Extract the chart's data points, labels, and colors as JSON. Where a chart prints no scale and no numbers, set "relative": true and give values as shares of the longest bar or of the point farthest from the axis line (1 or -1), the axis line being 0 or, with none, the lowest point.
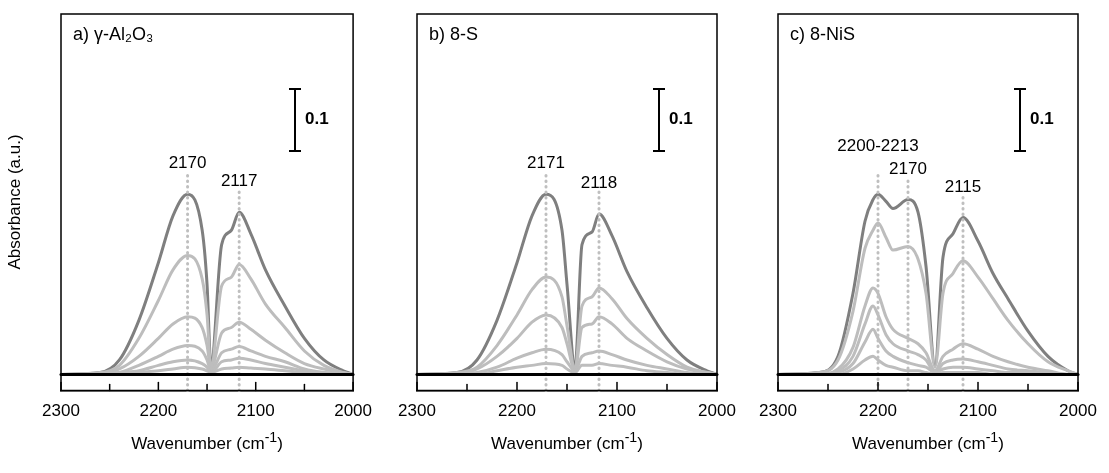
{
  "chart_data": [
    {
      "type": "line",
      "title": "a) γ-Al₂O₃",
      "xlabel": "Wavenumber (cm$^{-1}$)",
      "ylabel": "Absorbance (a.u.)",
      "relative": true,
      "annotations": [
        "0.1"
      ],
      "xlim": [
        2300,
        2000
      ],
      "xticks": [
        2300,
        {
          "value": 2250,
          "label": null
        },
        2200,
        {
          "value": 2150,
          "label": null
        },
        2100,
        {
          "value": 2050,
          "label": null
        },
        2000
      ],
      "x": [
        2300,
        2260,
        2240,
        2220,
        2200,
        2185,
        2170,
        2155,
        2150,
        2146,
        2135,
        2125,
        2117,
        2105,
        2090,
        2070,
        2050,
        2030,
        2010,
        2000
      ],
      "series": [
        {
          "color": "#7f7f7f",
          "values": [
            0,
            0.01,
            0.08,
            0.3,
            0.62,
            0.88,
            1,
            0.8,
            0.5,
            0.05,
            0.72,
            0.8,
            0.9,
            0.78,
            0.58,
            0.38,
            0.2,
            0.08,
            0.02,
            0
          ]
        },
        {
          "color": "#bdbdbd",
          "values": [
            0,
            0.01,
            0.05,
            0.2,
            0.41,
            0.58,
            0.66,
            0.53,
            0.33,
            0.04,
            0.49,
            0.54,
            0.61,
            0.53,
            0.39,
            0.26,
            0.13,
            0.05,
            0.01,
            0
          ]
        },
        {
          "color": "#bdbdbd",
          "values": [
            0,
            0,
            0.03,
            0.1,
            0.2,
            0.28,
            0.32,
            0.26,
            0.16,
            0.03,
            0.23,
            0.26,
            0.29,
            0.25,
            0.19,
            0.12,
            0.06,
            0.03,
            0.01,
            0
          ]
        },
        {
          "color": "#bdbdbd",
          "values": [
            0,
            0,
            0.01,
            0.05,
            0.1,
            0.14,
            0.16,
            0.13,
            0.08,
            0.02,
            0.12,
            0.14,
            0.155,
            0.13,
            0.1,
            0.07,
            0.03,
            0.01,
            0,
            0
          ]
        },
        {
          "color": "#bdbdbd",
          "values": [
            0,
            0,
            0.01,
            0.02,
            0.05,
            0.07,
            0.08,
            0.06,
            0.04,
            0.01,
            0.07,
            0.08,
            0.09,
            0.08,
            0.06,
            0.04,
            0.02,
            0.01,
            0,
            0
          ]
        },
        {
          "color": "#bdbdbd",
          "values": [
            0,
            0,
            0,
            0.01,
            0.02,
            0.03,
            0.04,
            0.03,
            0.02,
            0.01,
            0.03,
            0.035,
            0.04,
            0.035,
            0.03,
            0.02,
            0.01,
            0,
            0,
            0
          ]
        }
      ],
      "ref_lines": [
        {
          "axis": "y",
          "value": 0,
          "color": "#000000",
          "line_style": "solid"
        },
        {
          "axis": "x",
          "value": 2170,
          "label": "2170",
          "color": "#bfbfbf",
          "line_style": "dotted"
        },
        {
          "axis": "x",
          "value": 2117,
          "label": "2117",
          "color": "#bfbfbf",
          "line_style": "dotted"
        }
      ]
    },
    {
      "type": "line",
      "title": "b) 8-S",
      "xlabel": "Wavenumber (cm$^{-1}$)",
      "relative": true,
      "annotations": [
        "0.1"
      ],
      "xlim": [
        2300,
        2000
      ],
      "xticks": [
        2300,
        {
          "value": 2250,
          "label": null
        },
        2200,
        {
          "value": 2150,
          "label": null
        },
        2100,
        {
          "value": 2050,
          "label": null
        },
        2000
      ],
      "x": [
        2300,
        2260,
        2240,
        2220,
        2200,
        2185,
        2171,
        2155,
        2150,
        2142,
        2135,
        2125,
        2118,
        2105,
        2090,
        2070,
        2050,
        2030,
        2010,
        2000
      ],
      "series": [
        {
          "color": "#7f7f7f",
          "values": [
            0,
            0.01,
            0.08,
            0.3,
            0.62,
            0.88,
            1,
            0.8,
            0.5,
            0.04,
            0.72,
            0.79,
            0.89,
            0.77,
            0.57,
            0.37,
            0.2,
            0.08,
            0.02,
            0
          ]
        },
        {
          "color": "#bdbdbd",
          "values": [
            0,
            0.01,
            0.04,
            0.16,
            0.33,
            0.47,
            0.54,
            0.43,
            0.27,
            0.03,
            0.38,
            0.43,
            0.48,
            0.42,
            0.31,
            0.2,
            0.11,
            0.04,
            0.01,
            0
          ]
        },
        {
          "color": "#bdbdbd",
          "values": [
            0,
            0,
            0.03,
            0.1,
            0.2,
            0.29,
            0.33,
            0.26,
            0.17,
            0.02,
            0.26,
            0.28,
            0.32,
            0.28,
            0.2,
            0.13,
            0.07,
            0.03,
            0.01,
            0
          ]
        },
        {
          "color": "#bdbdbd",
          "values": [
            0,
            0,
            0.01,
            0.04,
            0.09,
            0.12,
            0.14,
            0.11,
            0.07,
            0.02,
            0.1,
            0.12,
            0.13,
            0.11,
            0.08,
            0.05,
            0.03,
            0.01,
            0,
            0
          ]
        },
        {
          "color": "#bdbdbd",
          "values": [
            0,
            0,
            0,
            0.02,
            0.04,
            0.05,
            0.06,
            0.05,
            0.03,
            0.01,
            0.05,
            0.05,
            0.06,
            0.05,
            0.04,
            0.02,
            0.01,
            0,
            0,
            0
          ]
        }
      ],
      "ref_lines": [
        {
          "axis": "y",
          "value": 0,
          "color": "#000000",
          "line_style": "solid"
        },
        {
          "axis": "x",
          "value": 2171,
          "label": "2171",
          "color": "#bfbfbf",
          "line_style": "dotted"
        },
        {
          "axis": "x",
          "value": 2118,
          "label": "2118",
          "color": "#bfbfbf",
          "line_style": "dotted"
        }
      ]
    },
    {
      "type": "line",
      "title": "c) 8-NiS",
      "xlabel": "Wavenumber (cm$^{-1}$)",
      "relative": true,
      "annotations": [
        "0.1"
      ],
      "xlim": [
        2300,
        2000
      ],
      "xticks": [
        2300,
        {
          "value": 2250,
          "label": null
        },
        2200,
        {
          "value": 2150,
          "label": null
        },
        2100,
        {
          "value": 2050,
          "label": null
        },
        2000
      ],
      "x": [
        2300,
        2260,
        2240,
        2225,
        2213,
        2205,
        2200,
        2192,
        2185,
        2170,
        2160,
        2152,
        2143,
        2135,
        2125,
        2115,
        2100,
        2085,
        2070,
        2050,
        2030,
        2010,
        2000
      ],
      "series": [
        {
          "color": "#7f7f7f",
          "values": [
            0,
            0.01,
            0.1,
            0.45,
            0.85,
            0.97,
            1,
            0.96,
            0.92,
            0.97,
            0.9,
            0.6,
            0.05,
            0.65,
            0.78,
            0.87,
            0.74,
            0.56,
            0.42,
            0.24,
            0.1,
            0.02,
            0
          ]
        },
        {
          "color": "#bdbdbd",
          "values": [
            0,
            0.01,
            0.08,
            0.35,
            0.7,
            0.8,
            0.84,
            0.76,
            0.69,
            0.71,
            0.64,
            0.45,
            0.04,
            0.45,
            0.56,
            0.63,
            0.54,
            0.42,
            0.3,
            0.17,
            0.07,
            0.02,
            0
          ]
        },
        {
          "color": "#bdbdbd",
          "values": [
            0,
            0,
            0.03,
            0.15,
            0.38,
            0.48,
            0.45,
            0.32,
            0.25,
            0.2,
            0.17,
            0.12,
            0.02,
            0.1,
            0.14,
            0.17,
            0.14,
            0.1,
            0.07,
            0.04,
            0.02,
            0,
            0
          ]
        },
        {
          "color": "#bdbdbd",
          "values": [
            0,
            0,
            0.02,
            0.1,
            0.28,
            0.38,
            0.33,
            0.22,
            0.17,
            0.13,
            0.11,
            0.08,
            0.01,
            0.06,
            0.08,
            0.085,
            0.07,
            0.05,
            0.03,
            0.02,
            0.01,
            0,
            0
          ]
        },
        {
          "color": "#bdbdbd",
          "values": [
            0,
            0,
            0.01,
            0.06,
            0.18,
            0.25,
            0.2,
            0.13,
            0.1,
            0.065,
            0.05,
            0.04,
            0.01,
            0.03,
            0.04,
            0.04,
            0.03,
            0.02,
            0.01,
            0.01,
            0,
            0,
            0
          ]
        },
        {
          "color": "#bdbdbd",
          "values": [
            0,
            0,
            0,
            0.03,
            0.08,
            0.1,
            0.08,
            0.05,
            0.04,
            0.02,
            0.02,
            0.01,
            0,
            0.01,
            0.01,
            0.01,
            0.01,
            0,
            0,
            0,
            0,
            0,
            0
          ]
        }
      ],
      "ref_lines": [
        {
          "axis": "y",
          "value": 0,
          "color": "#000000",
          "line_style": "solid"
        },
        {
          "axis": "x",
          "value": 2200,
          "label": "2200-2213",
          "color": "#bfbfbf",
          "line_style": "dotted"
        },
        {
          "axis": "x",
          "value": 2170,
          "label": "2170",
          "color": "#bfbfbf",
          "line_style": "dotted"
        },
        {
          "axis": "x",
          "value": 2115,
          "label": "2115",
          "color": "#bfbfbf",
          "line_style": "dotted"
        }
      ]
    }
  ]
}
